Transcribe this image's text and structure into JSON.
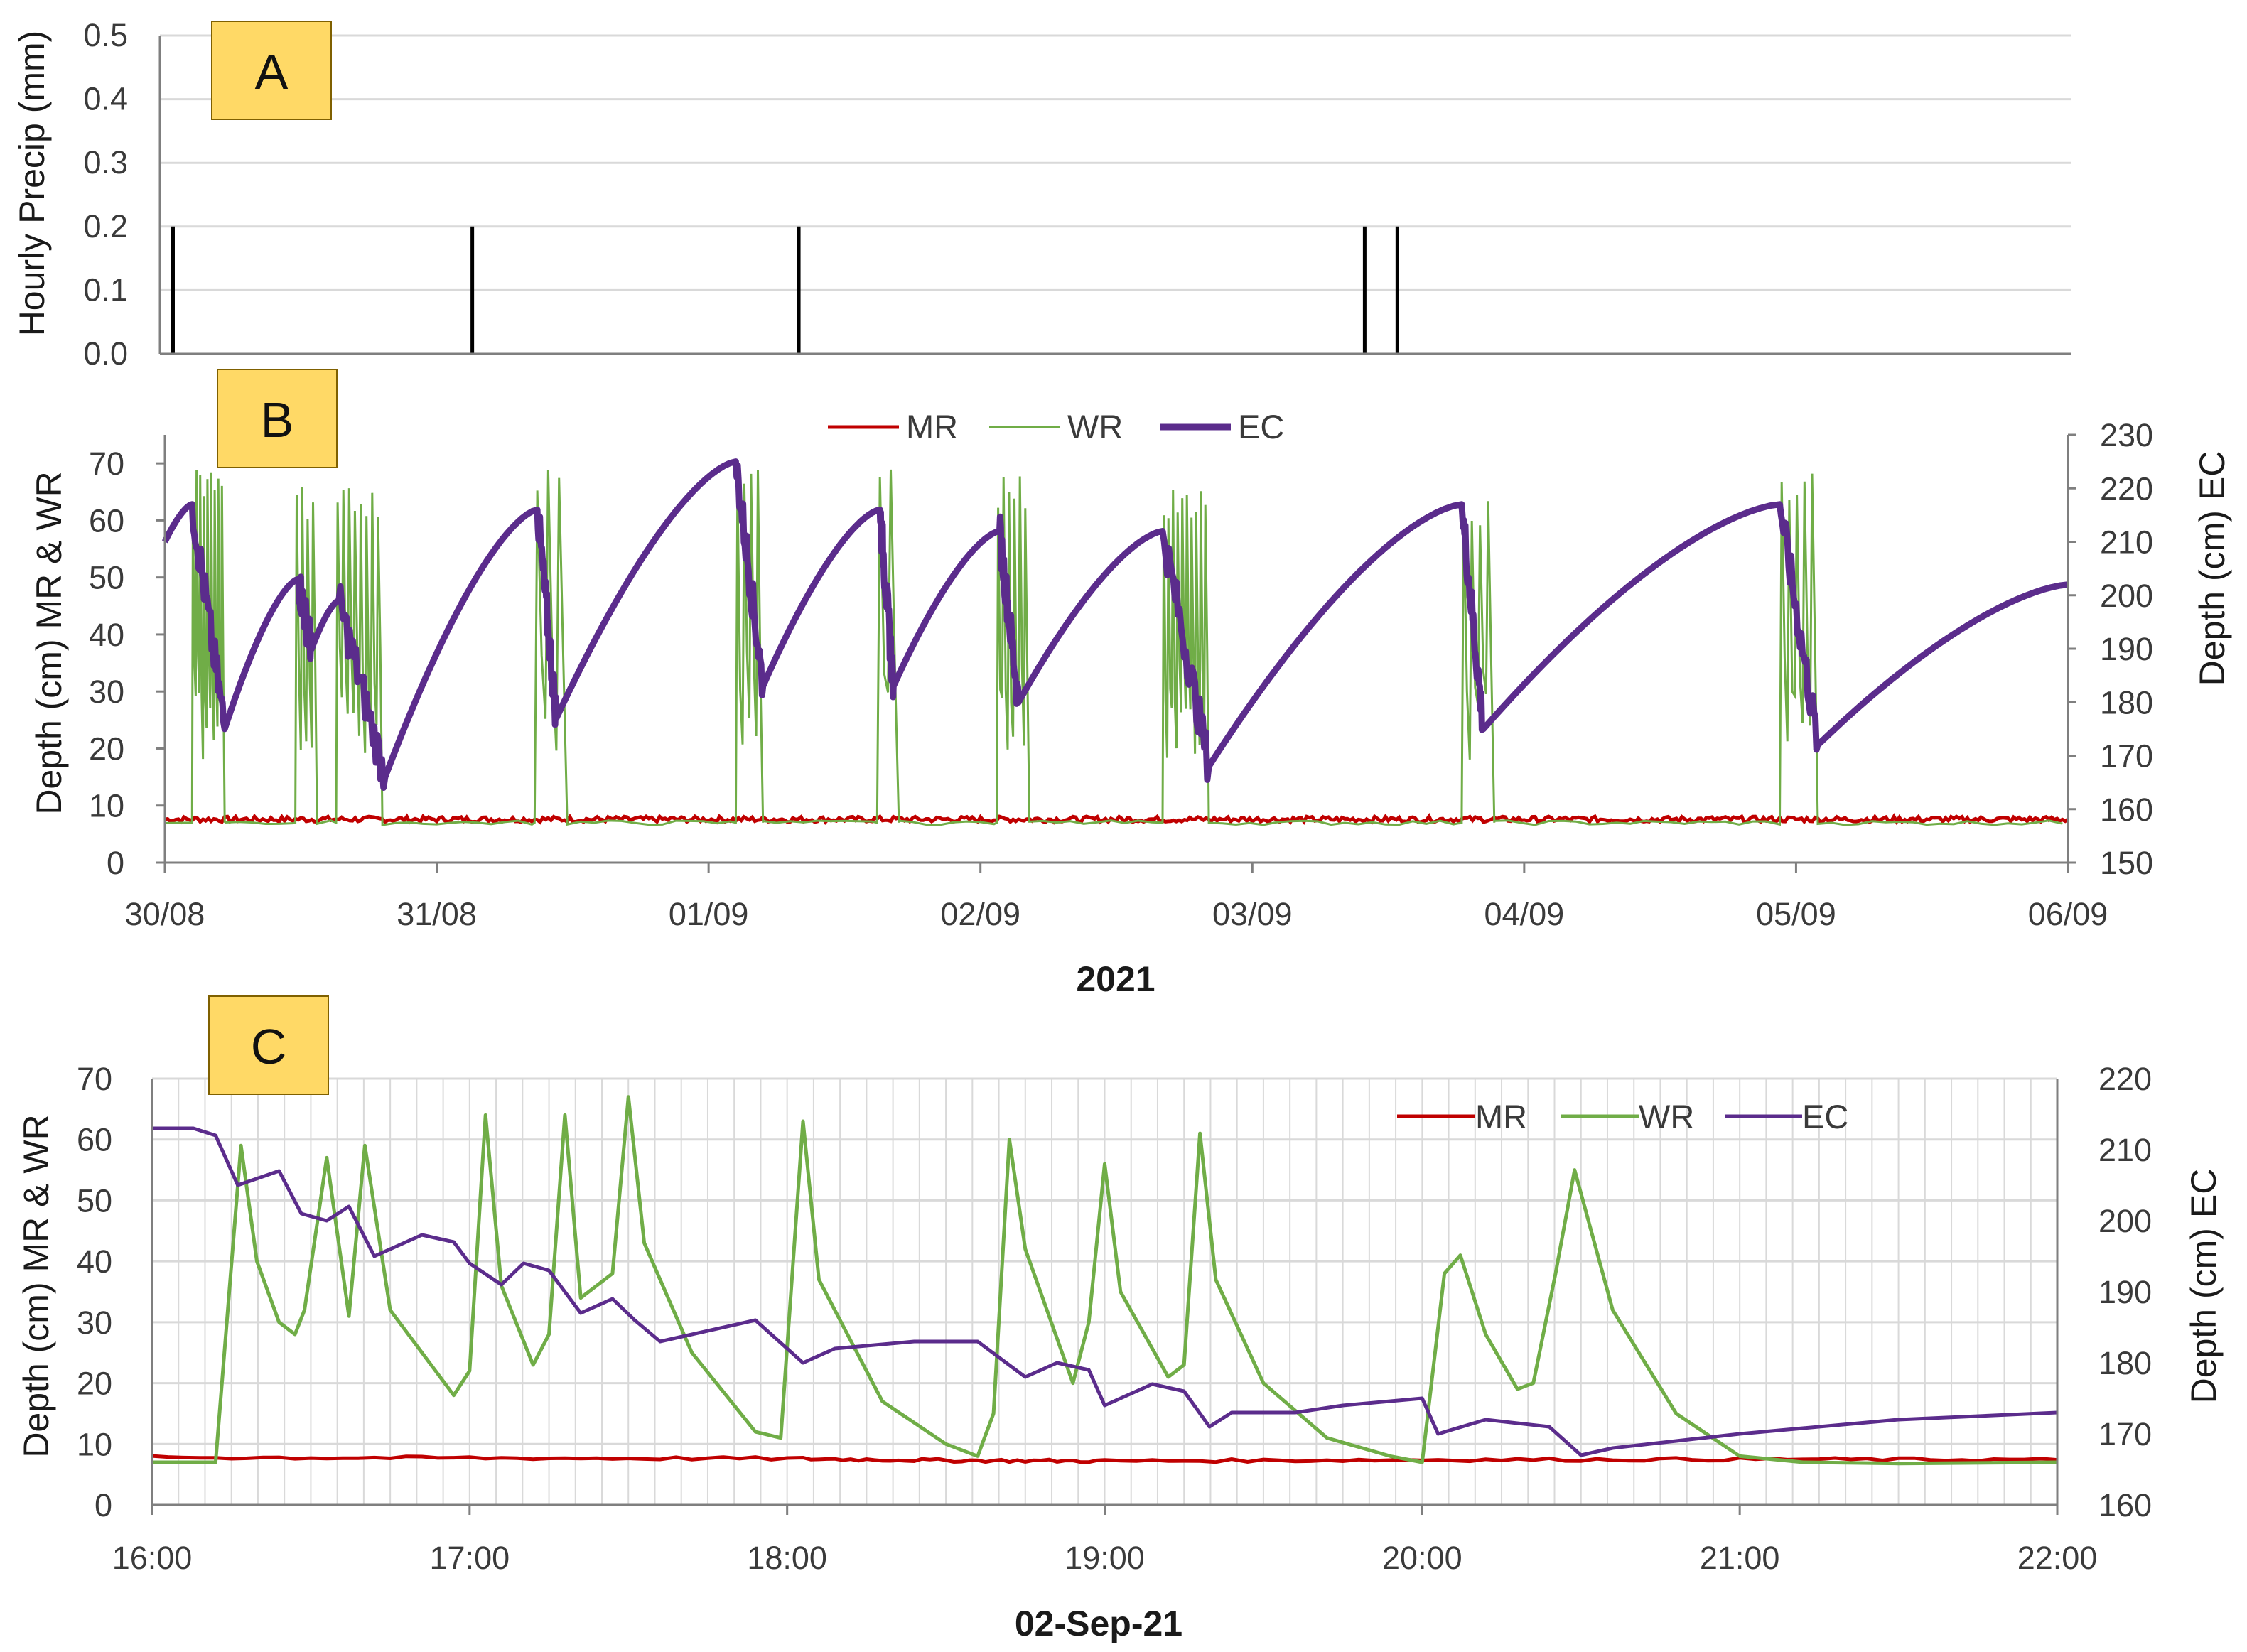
{
  "chart_data": [
    {
      "panel": "A",
      "type": "bar",
      "ylabel": "Hourly Precip (mm)",
      "ylim": [
        0,
        0.5
      ],
      "yticks": [
        "0.0",
        "0.1",
        "0.2",
        "0.3",
        "0.4",
        "0.5"
      ],
      "grid": true,
      "x_domain_days": [
        0,
        7
      ],
      "series": [
        {
          "name": "",
          "color": "#000000",
          "x_days": [
            0.03,
            1.13,
            2.33,
            4.41,
            4.53
          ],
          "values": [
            0.2,
            0.2,
            0.2,
            0.2,
            0.2
          ]
        }
      ]
    },
    {
      "panel": "B",
      "type": "line",
      "xlabel": "2021",
      "xticks": [
        "30/08",
        "31/08",
        "01/09",
        "02/09",
        "03/09",
        "04/09",
        "05/09",
        "06/09"
      ],
      "ylabel": "Depth (cm) MR & WR",
      "ylabel_right": "Depth (cm) EC",
      "ylim": [
        0,
        75
      ],
      "ylim_right": [
        150,
        230
      ],
      "yticks": [
        "0",
        "10",
        "20",
        "30",
        "40",
        "50",
        "60",
        "70"
      ],
      "yticks_right": [
        "150",
        "160",
        "170",
        "180",
        "190",
        "200",
        "210",
        "220",
        "230"
      ],
      "legend": "top-center",
      "series": [
        {
          "name": "MR",
          "axis": "left",
          "color": "#c00000",
          "baseline": 7.6
        },
        {
          "name": "WR",
          "axis": "left",
          "color": "#70ad47",
          "baseline": 7.0,
          "bursts": [
            {
              "start": 0.1,
              "end": 0.22,
              "peak": 69,
              "spikes": 9
            },
            {
              "start": 0.48,
              "end": 0.56,
              "peak": 66,
              "spikes": 4
            },
            {
              "start": 0.63,
              "end": 0.8,
              "peak": 66,
              "spikes": 8
            },
            {
              "start": 1.36,
              "end": 1.48,
              "peak": 69,
              "spikes": 3
            },
            {
              "start": 2.1,
              "end": 2.2,
              "peak": 69,
              "spikes": 4
            },
            {
              "start": 2.62,
              "end": 2.7,
              "peak": 69,
              "spikes": 2
            },
            {
              "start": 3.06,
              "end": 3.18,
              "peak": 68,
              "spikes": 6
            },
            {
              "start": 3.67,
              "end": 3.84,
              "peak": 66,
              "spikes": 10
            },
            {
              "start": 4.77,
              "end": 4.89,
              "peak": 64,
              "spikes": 4
            },
            {
              "start": 5.94,
              "end": 6.08,
              "peak": 69,
              "spikes": 5
            }
          ]
        },
        {
          "name": "EC",
          "axis": "right",
          "color": "#5b2c8c",
          "x_days": [
            0.0,
            0.1,
            0.22,
            0.49,
            0.54,
            0.64,
            0.81,
            1.37,
            1.44,
            2.1,
            2.2,
            2.63,
            2.68,
            3.07,
            3.14,
            3.67,
            3.84,
            4.77,
            4.85,
            5.94,
            6.08,
            7.0
          ],
          "values": [
            210,
            217,
            175,
            203,
            190,
            199,
            166,
            216,
            177,
            225,
            183,
            216,
            183,
            212,
            180,
            212,
            168,
            217,
            175,
            217,
            172,
            202
          ]
        }
      ]
    },
    {
      "panel": "C",
      "type": "line",
      "xlabel": "02-Sep-21",
      "xticks": [
        "16:00",
        "17:00",
        "18:00",
        "19:00",
        "20:00",
        "21:00",
        "22:00"
      ],
      "ylabel": "Depth (cm) MR & WR",
      "ylabel_right": "Depth (cm) EC",
      "ylim": [
        0,
        70
      ],
      "ylim_right": [
        160,
        220
      ],
      "yticks": [
        "0",
        "10",
        "20",
        "30",
        "40",
        "50",
        "60",
        "70"
      ],
      "yticks_right": [
        "160",
        "170",
        "180",
        "190",
        "200",
        "210",
        "220"
      ],
      "legend": "top-right",
      "series": [
        {
          "name": "MR",
          "axis": "left",
          "color": "#c00000",
          "x_hours": [
            16.0,
            17.0,
            18.0,
            18.5,
            19.0,
            20.0,
            21.0,
            22.0
          ],
          "values": [
            7.8,
            7.7,
            7.6,
            7.3,
            7.2,
            7.4,
            7.5,
            7.4
          ]
        },
        {
          "name": "WR",
          "axis": "left",
          "color": "#70ad47",
          "x_hours": [
            16.0,
            16.2,
            16.28,
            16.33,
            16.4,
            16.45,
            16.48,
            16.55,
            16.62,
            16.67,
            16.75,
            16.95,
            17.0,
            17.05,
            17.1,
            17.2,
            17.25,
            17.3,
            17.35,
            17.45,
            17.5,
            17.55,
            17.7,
            17.9,
            17.98,
            18.05,
            18.1,
            18.3,
            18.5,
            18.6,
            18.65,
            18.7,
            18.75,
            18.9,
            18.95,
            19.0,
            19.05,
            19.2,
            19.25,
            19.3,
            19.35,
            19.5,
            19.7,
            19.9,
            20.0,
            20.07,
            20.12,
            20.2,
            20.3,
            20.35,
            20.42,
            20.48,
            20.6,
            20.8,
            21.0,
            21.2,
            21.5,
            22.0
          ],
          "values": [
            7.0,
            7.0,
            59.0,
            40.0,
            30.0,
            28.0,
            32.0,
            57.0,
            31.0,
            59.0,
            32.0,
            18.0,
            22.0,
            64.0,
            36.0,
            23.0,
            28.0,
            64.0,
            34.0,
            38.0,
            67.0,
            43.0,
            25.0,
            12.0,
            11.0,
            63.0,
            37.0,
            17.0,
            10.0,
            8.0,
            15.0,
            60.0,
            42.0,
            20.0,
            30.0,
            56.0,
            35.0,
            21.0,
            23.0,
            61.0,
            37.0,
            20.0,
            11.0,
            8.0,
            7.0,
            38.0,
            41.0,
            28.0,
            19.0,
            20.0,
            38.0,
            55.0,
            32.0,
            15.0,
            8.0,
            7.0,
            6.8,
            7.0
          ]
        },
        {
          "name": "EC",
          "axis": "right",
          "color": "#5b2c8c",
          "x_hours": [
            16.0,
            16.13,
            16.2,
            16.27,
            16.4,
            16.47,
            16.55,
            16.62,
            16.7,
            16.75,
            16.85,
            16.95,
            17.0,
            17.1,
            17.17,
            17.25,
            17.35,
            17.45,
            17.52,
            17.6,
            17.9,
            18.05,
            18.15,
            18.4,
            18.6,
            18.75,
            18.85,
            18.95,
            19.0,
            19.15,
            19.25,
            19.33,
            19.4,
            19.6,
            19.75,
            20.0,
            20.05,
            20.2,
            20.4,
            20.5,
            20.6,
            21.0,
            21.5,
            22.0
          ],
          "values": [
            213.0,
            213.0,
            212.0,
            205.0,
            207.0,
            201.0,
            200.0,
            202.0,
            195.0,
            196.0,
            198.0,
            197.0,
            194.0,
            191.0,
            194.0,
            193.0,
            187.0,
            189.0,
            186.0,
            183.0,
            186.0,
            180.0,
            182.0,
            183.0,
            183.0,
            178.0,
            180.0,
            179.0,
            174.0,
            177.0,
            176.0,
            171.0,
            173.0,
            173.0,
            174.0,
            175.0,
            170.0,
            172.0,
            171.0,
            167.0,
            168.0,
            170.0,
            172.0,
            173.0
          ]
        }
      ]
    }
  ],
  "labels": {
    "panel_a_letter": "A",
    "panel_b_letter": "B",
    "panel_c_letter": "C",
    "b_legend_mr": "MR",
    "b_legend_wr": "WR",
    "b_legend_ec": "EC",
    "c_legend_mr": "MR",
    "c_legend_wr": "WR",
    "c_legend_ec": "EC"
  },
  "colors": {
    "mr": "#c00000",
    "wr": "#70ad47",
    "ec": "#5b2c8c",
    "grid": "#d9d9d9",
    "axis": "#7f7f7f",
    "panel_box_fill": "#ffd966",
    "panel_box_border": "#7f6000"
  }
}
